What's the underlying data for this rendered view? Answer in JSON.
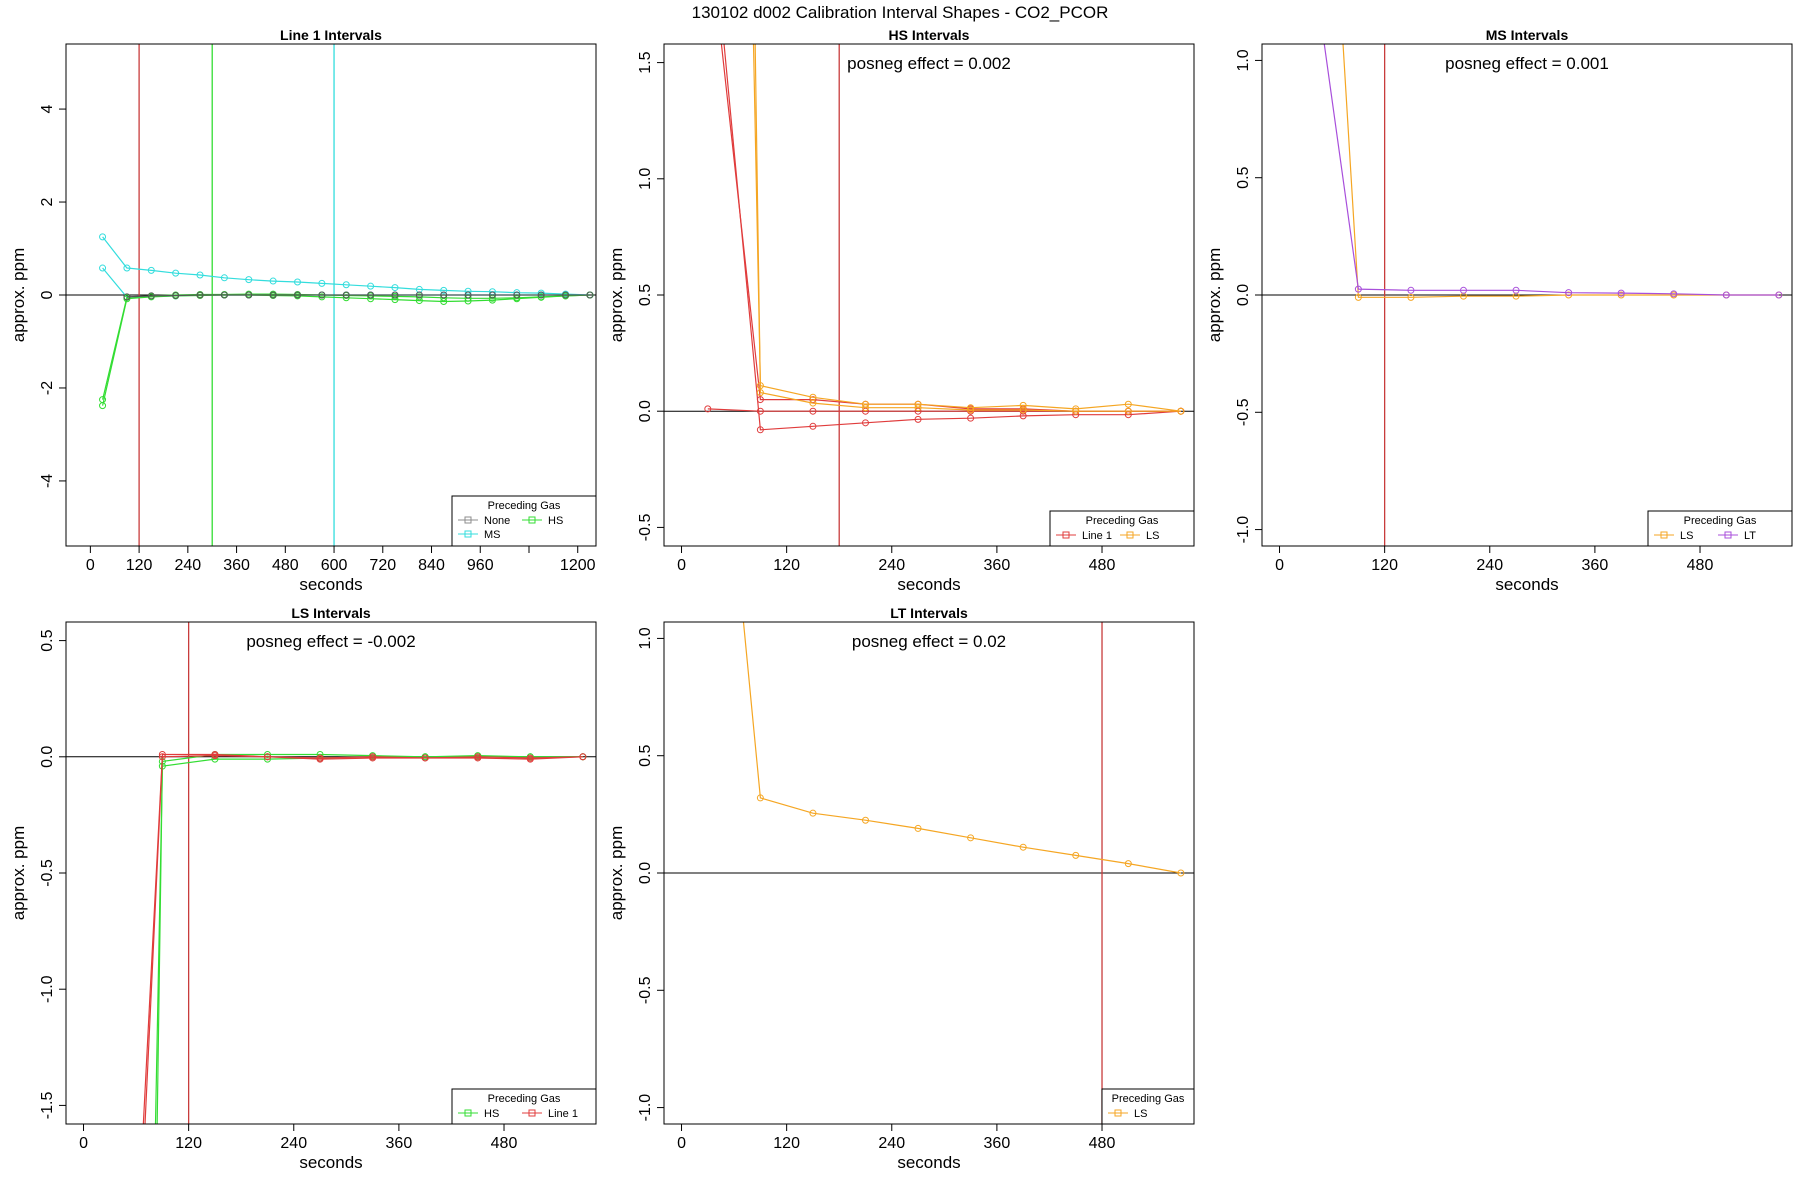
{
  "figure": {
    "title": "130102  d002   Calibration Interval Shapes - CO2_PCOR",
    "legend_title": "Preceding Gas",
    "colors": {
      "axis": "#000000",
      "zero_line": "#000000",
      "Line 1": "#e03c3c",
      "None": "#8c8c8c",
      "HS": "#33dd33",
      "MS": "#33dddd",
      "LS": "#f5a623",
      "LT": "#a84fdb"
    }
  },
  "chart_data": [
    {
      "type": "line",
      "title": "Line 1 Intervals",
      "xlabel": "seconds",
      "ylabel": "approx. ppm",
      "xlim": [
        -60,
        1245
      ],
      "ylim": [
        -5.4,
        5.4
      ],
      "xticks": [
        0,
        120,
        240,
        360,
        480,
        600,
        720,
        840,
        960,
        1080,
        1200
      ],
      "xtick_labels": [
        "0",
        "120",
        "240",
        "360",
        "480",
        "600",
        "720",
        "840",
        "960",
        "",
        "1200"
      ],
      "yticks": [
        -4,
        -2,
        0,
        2,
        4
      ],
      "ytick_labels": [
        "-4",
        "-2",
        "0",
        "2",
        "4"
      ],
      "annotation": "",
      "vlines": [
        {
          "x": 120,
          "color": "#c83c3c"
        },
        {
          "x": 300,
          "color": "#33dd33"
        },
        {
          "x": 600,
          "color": "#33dddd"
        }
      ],
      "legend": {
        "title": "Preceding Gas",
        "position": "bottom-right",
        "entries": [
          {
            "name": "None",
            "color": "#8c8c8c"
          },
          {
            "name": "HS",
            "color": "#33dd33"
          },
          {
            "name": "MS",
            "color": "#33dddd"
          }
        ]
      },
      "series": [
        {
          "name": "MS",
          "color": "#33dddd",
          "x": [
            30,
            90,
            150,
            210,
            270,
            330,
            390,
            450,
            510,
            570,
            630,
            690,
            750,
            810,
            870,
            930,
            990,
            1050,
            1110,
            1170,
            1230
          ],
          "y": [
            1.25,
            0.58,
            0.53,
            0.47,
            0.43,
            0.37,
            0.33,
            0.3,
            0.28,
            0.25,
            0.22,
            0.19,
            0.16,
            0.12,
            0.1,
            0.08,
            0.07,
            0.05,
            0.04,
            0.02,
            0.0
          ]
        },
        {
          "name": "MS",
          "color": "#33dddd",
          "x": [
            30,
            90,
            150,
            210,
            270,
            330,
            390,
            450,
            510,
            570,
            630,
            690,
            750,
            810,
            870,
            930,
            990,
            1050,
            1110,
            1170,
            1230
          ],
          "y": [
            0.58,
            -0.05,
            -0.03,
            -0.02,
            0.0,
            0.0,
            0.0,
            0.0,
            0.0,
            0.0,
            0.0,
            0.0,
            0.0,
            0.0,
            0.0,
            0.0,
            0.0,
            0.0,
            0.0,
            0.0,
            0.0
          ]
        },
        {
          "name": "HS",
          "color": "#33dd33",
          "x": [
            30,
            90,
            150,
            210,
            270,
            330,
            390,
            450,
            510,
            570,
            630,
            690,
            750,
            810,
            870,
            930,
            990,
            1050,
            1110,
            1170,
            1230
          ],
          "y": [
            -2.25,
            -0.05,
            -0.02,
            0.0,
            0.01,
            0.01,
            0.02,
            0.02,
            0.01,
            0.0,
            -0.01,
            -0.02,
            -0.03,
            -0.04,
            -0.06,
            -0.07,
            -0.07,
            -0.06,
            -0.04,
            -0.02,
            0.0
          ]
        },
        {
          "name": "HS",
          "color": "#33dd33",
          "x": [
            30,
            90,
            150,
            210,
            270,
            330,
            390,
            450,
            510,
            570,
            630,
            690,
            750,
            810,
            870,
            930,
            990,
            1050,
            1110,
            1170,
            1230
          ],
          "y": [
            -2.38,
            -0.08,
            -0.04,
            -0.02,
            -0.01,
            0.0,
            0.0,
            -0.01,
            -0.02,
            -0.04,
            -0.06,
            -0.08,
            -0.1,
            -0.12,
            -0.14,
            -0.13,
            -0.11,
            -0.08,
            -0.05,
            -0.02,
            0.0
          ]
        },
        {
          "name": "Line 1",
          "color": "#555555",
          "x": [
            90,
            150,
            210,
            270,
            330,
            390,
            450,
            510,
            570,
            630,
            690,
            750,
            810,
            870,
            930,
            990,
            1050,
            1110,
            1170,
            1230
          ],
          "y": [
            -0.04,
            -0.02,
            -0.01,
            0.0,
            0.0,
            0.0,
            0.0,
            0.0,
            0.0,
            0.0,
            0.0,
            0.0,
            0.0,
            0.0,
            0.0,
            0.0,
            0.0,
            0.0,
            0.0,
            0.0
          ]
        }
      ]
    },
    {
      "type": "line",
      "title": "HS Intervals",
      "xlabel": "seconds",
      "ylabel": "approx. ppm",
      "xlim": [
        -20,
        585
      ],
      "ylim": [
        -0.58,
        1.58
      ],
      "xticks": [
        0,
        120,
        240,
        360,
        480
      ],
      "xtick_labels": [
        "0",
        "120",
        "240",
        "360",
        "480"
      ],
      "yticks": [
        -0.5,
        0.0,
        0.5,
        1.0,
        1.5
      ],
      "ytick_labels": [
        "-0.5",
        "0.0",
        "0.5",
        "1.0",
        "1.5"
      ],
      "annotation": "posneg effect = 0.002",
      "vlines": [
        {
          "x": 180,
          "color": "#c83c3c"
        }
      ],
      "legend": {
        "title": "Preceding Gas",
        "position": "bottom-right",
        "entries": [
          {
            "name": "Line 1",
            "color": "#e03c3c"
          },
          {
            "name": "LS",
            "color": "#f5a623"
          }
        ]
      },
      "series": [
        {
          "name": "Line 1",
          "color": "#e03c3c",
          "x": [
            30,
            90,
            150,
            210,
            270,
            330,
            390,
            450,
            510,
            570
          ],
          "y": [
            0.01,
            0.0,
            0.0,
            0.0,
            0.0,
            0.0,
            0.0,
            0.0,
            0.0,
            0.0
          ]
        },
        {
          "name": "Line 1",
          "color": "#e03c3c",
          "x": [
            45,
            90,
            150,
            210,
            270,
            330,
            390,
            450,
            510,
            570
          ],
          "y": [
            1.6,
            0.05,
            0.05,
            0.03,
            0.03,
            0.01,
            0.01,
            0.0,
            0.0,
            0.0
          ]
        },
        {
          "name": "Line 1",
          "color": "#e03c3c",
          "x": [
            48,
            90,
            150,
            210,
            270,
            330,
            390,
            450,
            510,
            570
          ],
          "y": [
            1.6,
            -0.08,
            -0.065,
            -0.05,
            -0.035,
            -0.03,
            -0.02,
            -0.015,
            -0.015,
            0.0
          ]
        },
        {
          "name": "LS",
          "color": "#f5a623",
          "x": [
            82,
            90,
            150,
            210,
            270,
            330,
            390,
            450,
            510,
            570
          ],
          "y": [
            1.6,
            0.11,
            0.06,
            0.03,
            0.03,
            0.015,
            0.025,
            0.01,
            0.03,
            0.0
          ]
        },
        {
          "name": "LS",
          "color": "#f5a623",
          "x": [
            84,
            90,
            150,
            210,
            270,
            330,
            390,
            450,
            510,
            570
          ],
          "y": [
            1.6,
            0.08,
            0.035,
            0.015,
            0.015,
            0.005,
            0.005,
            0.0,
            0.0,
            0.0
          ]
        }
      ]
    },
    {
      "type": "line",
      "title": "MS Intervals",
      "xlabel": "seconds",
      "ylabel": "approx. ppm",
      "xlim": [
        -20,
        585
      ],
      "ylim": [
        -1.07,
        1.07
      ],
      "xticks": [
        0,
        120,
        240,
        360,
        480
      ],
      "xtick_labels": [
        "0",
        "120",
        "240",
        "360",
        "480"
      ],
      "yticks": [
        -1.0,
        -0.5,
        0.0,
        0.5,
        1.0
      ],
      "ytick_labels": [
        "-1.0",
        "-0.5",
        "0.0",
        "0.5",
        "1.0"
      ],
      "annotation": "posneg effect = 0.001",
      "vlines": [
        {
          "x": 120,
          "color": "#c83c3c"
        }
      ],
      "legend": {
        "title": "Preceding Gas",
        "position": "bottom-right",
        "entries": [
          {
            "name": "LS",
            "color": "#f5a623"
          },
          {
            "name": "LT",
            "color": "#a84fdb"
          }
        ]
      },
      "series": [
        {
          "name": "LS",
          "color": "#f5a623",
          "x": [
            72,
            90,
            150,
            210,
            270,
            330,
            390,
            450,
            510,
            570
          ],
          "y": [
            1.1,
            -0.01,
            -0.01,
            -0.005,
            -0.005,
            0.0,
            0.0,
            0.0,
            0.0,
            0.0
          ]
        },
        {
          "name": "LT",
          "color": "#a84fdb",
          "x": [
            50,
            90,
            150,
            210,
            270,
            330,
            390,
            450,
            510,
            570
          ],
          "y": [
            1.1,
            0.025,
            0.02,
            0.02,
            0.02,
            0.01,
            0.008,
            0.005,
            0.0,
            0.0
          ]
        }
      ]
    },
    {
      "type": "line",
      "title": "LS Intervals",
      "xlabel": "seconds",
      "ylabel": "approx. ppm",
      "xlim": [
        -20,
        585
      ],
      "ylim": [
        -1.58,
        0.58
      ],
      "xticks": [
        0,
        120,
        240,
        360,
        480
      ],
      "xtick_labels": [
        "0",
        "120",
        "240",
        "360",
        "480"
      ],
      "yticks": [
        -1.5,
        -1.0,
        -0.5,
        0.0,
        0.5
      ],
      "ytick_labels": [
        "-1.5",
        "-1.0",
        "-0.5",
        "0.0",
        "0.5"
      ],
      "annotation": "posneg effect = -0.002",
      "vlines": [
        {
          "x": 120,
          "color": "#c83c3c"
        }
      ],
      "legend": {
        "title": "Preceding Gas",
        "position": "bottom-right",
        "entries": [
          {
            "name": "HS",
            "color": "#33dd33"
          },
          {
            "name": "Line 1",
            "color": "#e03c3c"
          }
        ]
      },
      "series": [
        {
          "name": "HS",
          "color": "#33dd33",
          "x": [
            82,
            90,
            150,
            210,
            270,
            330,
            390,
            450,
            510,
            570
          ],
          "y": [
            -1.6,
            -0.04,
            -0.01,
            -0.01,
            -0.005,
            0.0,
            0.0,
            0.0,
            0.0,
            0.0
          ]
        },
        {
          "name": "HS",
          "color": "#33dd33",
          "x": [
            84,
            90,
            150,
            210,
            270,
            330,
            390,
            450,
            510,
            570
          ],
          "y": [
            -1.6,
            -0.02,
            0.01,
            0.01,
            0.01,
            0.005,
            0.0,
            0.005,
            0.0,
            0.0
          ]
        },
        {
          "name": "Line 1",
          "color": "#e03c3c",
          "x": [
            68,
            90,
            150,
            210,
            270,
            330,
            390,
            450,
            510,
            570
          ],
          "y": [
            -1.6,
            0.01,
            0.01,
            0.0,
            -0.005,
            0.0,
            -0.005,
            0.0,
            -0.005,
            0.0
          ]
        },
        {
          "name": "Line 1",
          "color": "#e03c3c",
          "x": [
            70,
            90,
            150,
            210,
            270,
            330,
            390,
            450,
            510,
            570
          ],
          "y": [
            -1.6,
            0.0,
            0.005,
            0.0,
            -0.01,
            -0.005,
            -0.005,
            -0.005,
            -0.01,
            0.0
          ]
        }
      ]
    },
    {
      "type": "line",
      "title": "LT Intervals",
      "xlabel": "seconds",
      "ylabel": "approx. ppm",
      "xlim": [
        -20,
        585
      ],
      "ylim": [
        -1.07,
        1.07
      ],
      "xticks": [
        0,
        120,
        240,
        360,
        480
      ],
      "xtick_labels": [
        "0",
        "120",
        "240",
        "360",
        "480"
      ],
      "yticks": [
        -1.0,
        -0.5,
        0.0,
        0.5,
        1.0
      ],
      "ytick_labels": [
        "-1.0",
        "-0.5",
        "0.0",
        "0.5",
        "1.0"
      ],
      "annotation": "posneg effect = 0.02",
      "vlines": [
        {
          "x": 480,
          "color": "#c83c3c"
        }
      ],
      "legend": {
        "title": "Preceding Gas",
        "position": "bottom-right",
        "entries": [
          {
            "name": "LS",
            "color": "#f5a623"
          }
        ]
      },
      "series": [
        {
          "name": "LS",
          "color": "#f5a623",
          "x": [
            70,
            90,
            150,
            210,
            270,
            330,
            390,
            450,
            510,
            570
          ],
          "y": [
            1.1,
            0.32,
            0.255,
            0.225,
            0.19,
            0.15,
            0.11,
            0.075,
            0.04,
            0.0
          ]
        }
      ]
    }
  ]
}
